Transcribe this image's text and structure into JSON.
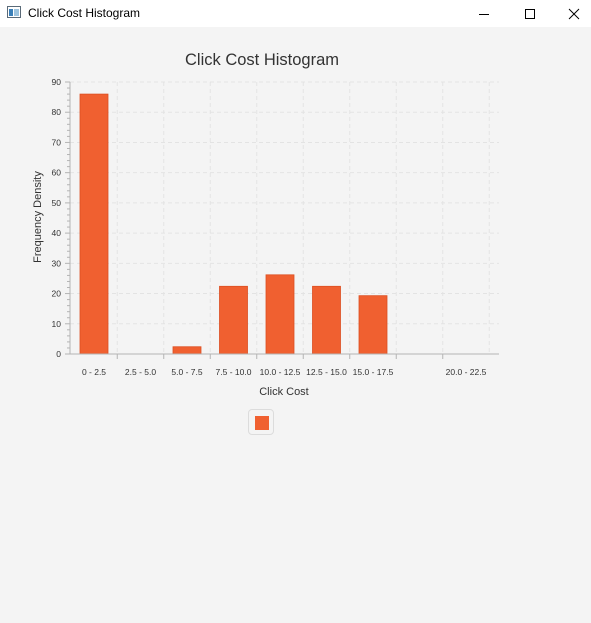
{
  "window": {
    "title": "Click Cost Histogram",
    "icons": {
      "app": "java-app-icon",
      "minimize": "minimize-icon",
      "maximize": "maximize-icon",
      "close": "close-icon"
    }
  },
  "colors": {
    "bar": "#f06030",
    "bar_stroke": "#dd4f22",
    "grid": "#e3e3e3",
    "axis": "#b4b4b4"
  },
  "chart_data": {
    "type": "bar",
    "title": "Click Cost Histogram",
    "xlabel": "Click Cost",
    "ylabel": "Frequency Density",
    "categories": [
      "0 - 2.5",
      "2.5 - 5.0",
      "5.0 - 7.5",
      "7.5 - 10.0",
      "10.0 - 12.5",
      "12.5 - 15.0",
      "15.0 - 17.5",
      "",
      "20.0 - 22.5"
    ],
    "values": [
      86,
      0,
      2.4,
      22.4,
      26.2,
      22.4,
      19.3,
      0,
      0
    ],
    "ylim": [
      0,
      90
    ],
    "yticks": [
      0,
      10,
      20,
      30,
      40,
      50,
      60,
      70,
      80,
      90
    ],
    "grid": true,
    "legend": "bottom-center",
    "series": [
      {
        "values": [
          86,
          0,
          2.4,
          22.4,
          26.2,
          22.4,
          19.3,
          0,
          0
        ]
      }
    ]
  }
}
